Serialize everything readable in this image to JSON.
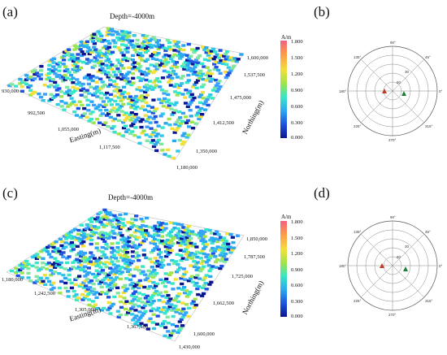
{
  "panels": [
    {
      "label": "(a)",
      "depth": "Depth=-4000m",
      "easting_ticks": [
        "930,000",
        "992,500",
        "1,055,000",
        "1,117,500",
        "1,180,000"
      ],
      "northing_ticks": [
        "1,600,000",
        "1,537,500",
        "1,475,000",
        "1,412,500",
        "1,350,000"
      ],
      "easting_title": "Easting(m)",
      "northing_title": "Northing(m)",
      "unit": "A/m",
      "colorbar_ticks": [
        "1.800",
        "1.500",
        "1.200",
        "0.900",
        "0.600",
        "0.300",
        "0.000"
      ]
    },
    {
      "label": "(b)"
    },
    {
      "label": "(c)",
      "depth": "Depth=-4000m",
      "easting_ticks": [
        "1,180,000",
        "1,242,500",
        "1,305,000",
        "1,367,500",
        "1,430,000"
      ],
      "northing_ticks": [
        "1,850,000",
        "1,787,500",
        "1,725,000",
        "1,662,500",
        "1,600,000"
      ],
      "easting_title": "Easting(m)",
      "northing_title": "Northing(m)",
      "unit": "A/m",
      "colorbar_ticks": [
        "1.800",
        "1.500",
        "1.200",
        "0.900",
        "0.600",
        "0.300",
        "0.000"
      ]
    },
    {
      "label": "(d)"
    }
  ],
  "polar": {
    "angle_labels": [
      "90°",
      "45°",
      "0°",
      "315°",
      "270°",
      "225°",
      "180°",
      "135°"
    ],
    "radius_labels": [
      "30",
      "60"
    ],
    "marker_colors": [
      "#c0392b",
      "#1e7e34"
    ]
  }
}
